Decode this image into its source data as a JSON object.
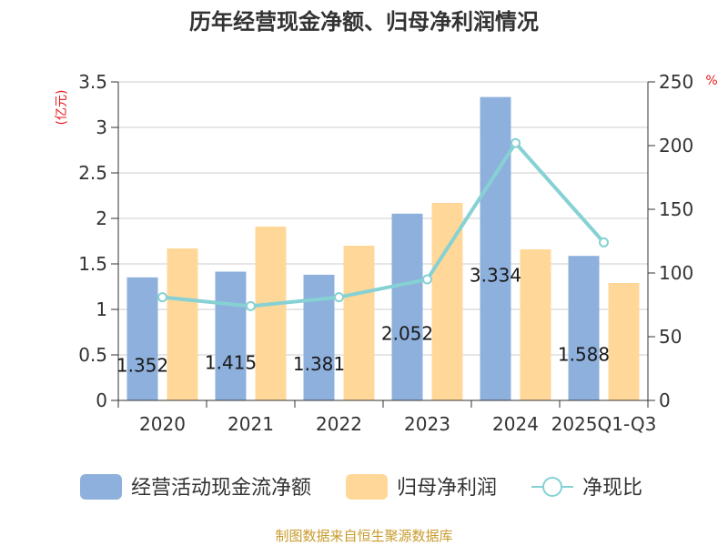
{
  "chart_data": {
    "type": "bar",
    "title": "历年经营现金净额、归母净利润情况",
    "categories": [
      "2020",
      "2021",
      "2022",
      "2023",
      "2024",
      "2025Q1-Q3"
    ],
    "series": [
      {
        "name": "经营活动现金流净额",
        "kind": "bar",
        "axis": "left",
        "color": "#8eb0dc",
        "values": [
          1.352,
          1.415,
          1.381,
          2.052,
          3.334,
          1.588
        ],
        "labels": [
          "1.352",
          "1.415",
          "1.381",
          "2.052",
          "3.334",
          "1.588"
        ]
      },
      {
        "name": "归母净利润",
        "kind": "bar",
        "axis": "left",
        "color": "#ffd899",
        "values": [
          1.67,
          1.91,
          1.7,
          2.17,
          1.66,
          1.29
        ]
      },
      {
        "name": "净现比",
        "kind": "line",
        "axis": "right",
        "color": "#86d1d4",
        "values": [
          81,
          74,
          81,
          95,
          202,
          124
        ]
      }
    ],
    "y_left": {
      "label": "(亿元)",
      "min": 0,
      "max": 3.5,
      "ticks": [
        "0",
        "0.5",
        "1",
        "1.5",
        "2",
        "2.5",
        "3",
        "3.5"
      ]
    },
    "y_right": {
      "label": "%",
      "min": 0,
      "max": 250,
      "ticks": [
        "0",
        "50",
        "100",
        "150",
        "200",
        "250"
      ]
    },
    "grid": true,
    "legend_position": "bottom"
  },
  "source": "制图数据来自恒生聚源数据库"
}
